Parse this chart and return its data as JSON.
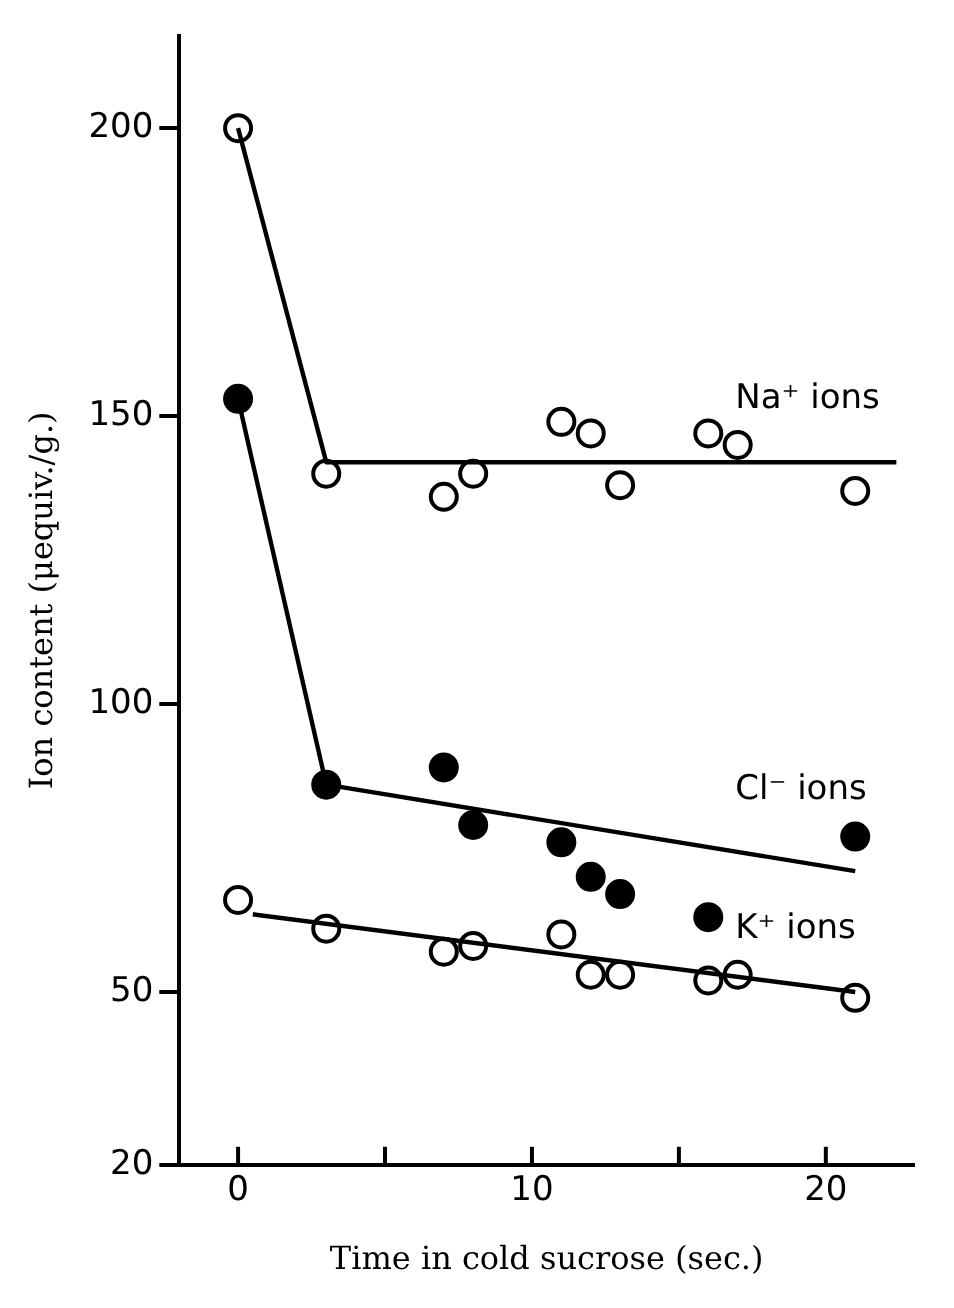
{
  "chart_data": {
    "type": "scatter",
    "xlabel": "Time in cold sucrose (sec.)",
    "ylabel": "Ion content (μequiv./g.)",
    "xlim": [
      -2,
      23
    ],
    "xticks": [
      0,
      {
        "value": 5,
        "label": null
      },
      10,
      {
        "value": 15,
        "label": null
      },
      20
    ],
    "ylim": [
      20,
      216
    ],
    "yticks": [
      20,
      50,
      100,
      150,
      200
    ],
    "grid": false,
    "legend": false,
    "marker": "circle",
    "series": [
      {
        "name": "Na⁺ ions",
        "color": "#ffffff",
        "x": [
          0,
          3,
          7,
          8,
          11,
          12,
          13,
          16,
          17,
          21
        ],
        "values": [
          200,
          140,
          136,
          140,
          149,
          147,
          138,
          147,
          145,
          137
        ]
      },
      {
        "name": "Cl⁻ ions",
        "color": "#000000",
        "x": [
          0,
          3,
          7,
          8,
          11,
          12,
          13,
          16,
          21
        ],
        "values": [
          153,
          86,
          89,
          79,
          76,
          70,
          67,
          63,
          77
        ]
      },
      {
        "name": "K⁺ ions",
        "color": "#ffffff",
        "x": [
          0,
          3,
          7,
          8,
          11,
          12,
          13,
          16,
          17,
          21
        ],
        "values": [
          66,
          61,
          57,
          58,
          60,
          53,
          53,
          52,
          53,
          49
        ]
      },
      {
        "type": "line",
        "color": "#000000",
        "marker": "none",
        "x": [
          0,
          3,
          22.4
        ],
        "values": [
          200,
          142,
          142
        ]
      },
      {
        "type": "line",
        "color": "#000000",
        "marker": "none",
        "x": [
          0,
          3,
          21
        ],
        "values": [
          153,
          86,
          71
        ]
      },
      {
        "type": "line",
        "color": "#000000",
        "marker": "none",
        "x": [
          0.5,
          21
        ],
        "values": [
          63.5,
          50
        ]
      }
    ]
  }
}
